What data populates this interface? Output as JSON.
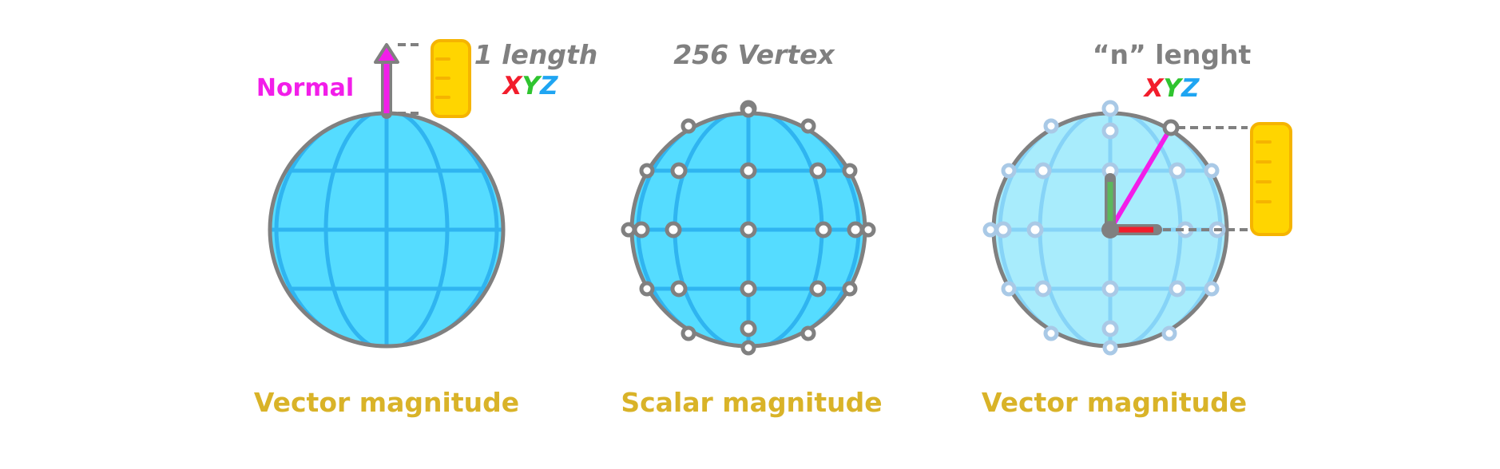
{
  "panels": [
    {
      "caption": "Vector magnitude",
      "normal_label": "Normal",
      "length_label": "1 length",
      "axes": [
        "X",
        "Y",
        "Z"
      ]
    },
    {
      "caption": "Scalar magnitude",
      "count_label": "256 Vertex"
    },
    {
      "caption": "Vector magnitude",
      "length_label": "“n” lenght",
      "axes": [
        "X",
        "Y",
        "Z"
      ]
    }
  ],
  "colors": {
    "sphere_fill": "#55dcff",
    "sphere_grid": "#2fb4f0",
    "sphere_fill_light": "#a8ecfc",
    "sphere_grid_light": "#86d3f7",
    "outline": "#808080",
    "caption": "#d9b328",
    "normal": "#f21ee9",
    "ruler_fill": "#ffd500",
    "ruler_stroke": "#f5b400",
    "axis_x": "#f21d2c",
    "axis_y": "#2fc42f",
    "axis_z": "#1fa5f2",
    "text_gray": "#808080",
    "axis_green": "#5cb85c"
  },
  "icons": [
    "ruler-icon",
    "arrow-up-icon",
    "vertex-dot-icon"
  ]
}
